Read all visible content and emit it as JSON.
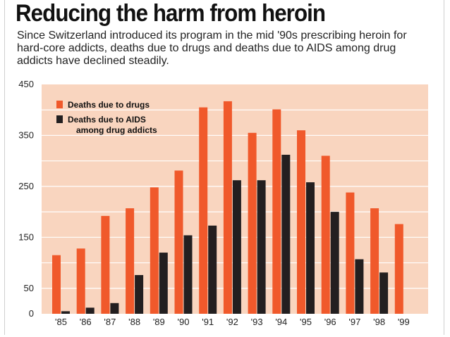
{
  "title": "Reducing the harm from heroin",
  "subtitle": "Since Switzerland introduced its program in the mid '90s prescribing heroin for hard-core addicts, deaths due to drugs and deaths due to AIDS among drug addicts have declined steadily.",
  "colors": {
    "plot_background": "#f9d5bf",
    "gridline": "#ffffff",
    "drugs": "#f0592b",
    "aids": "#231f20"
  },
  "chart_data": {
    "type": "bar",
    "categories": [
      "'85",
      "'86",
      "'87",
      "'88",
      "'89",
      "'90",
      "'91",
      "'92",
      "'93",
      "'94",
      "'95",
      "'96",
      "'97",
      "'98",
      "'99"
    ],
    "series": [
      {
        "name": "Deaths due to drugs",
        "values": [
          115,
          128,
          192,
          207,
          248,
          281,
          405,
          417,
          355,
          401,
          360,
          310,
          238,
          207,
          176
        ]
      },
      {
        "name": "Deaths due to AIDS among drug addicts",
        "values": [
          5,
          12,
          21,
          76,
          120,
          154,
          173,
          262,
          262,
          312,
          258,
          200,
          107,
          81,
          0
        ]
      }
    ],
    "y_ticks": [
      "0",
      "50",
      "150",
      "250",
      "350",
      "450"
    ],
    "ylim": [
      0,
      450
    ],
    "grid": true,
    "legend_position": "top-left",
    "legend": [
      "Deaths due to drugs",
      "Deaths due to AIDS",
      "among drug addicts"
    ]
  }
}
